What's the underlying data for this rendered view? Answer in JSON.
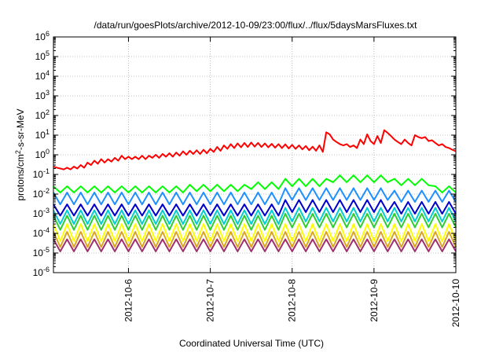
{
  "chart_data": {
    "type": "line",
    "title": "/data/run/goesPlots/archive/2012-10-09/23:00/flux/../flux/5daysMarsFluxes.txt",
    "xlabel": "Coordinated Universal Time (UTC)",
    "ylabel_prefix": "protons/cm",
    "ylabel_sup": "2",
    "ylabel_suffix": "-s-sr-MeV",
    "x_range": [
      "2012-10-05T02:00",
      "2012-10-10T00:00"
    ],
    "x_ticks": [
      "2012-10-6",
      "2012-10-7",
      "2012-10-8",
      "2012-10-9",
      "2012-10-10"
    ],
    "y_scale": "log",
    "y_range": [
      1e-06,
      1000000.0
    ],
    "y_ticks": [
      {
        "base": "10",
        "exp": "-6"
      },
      {
        "base": "10",
        "exp": "-5"
      },
      {
        "base": "10",
        "exp": "-4"
      },
      {
        "base": "10",
        "exp": "-3"
      },
      {
        "base": "10",
        "exp": "-2"
      },
      {
        "base": "10",
        "exp": "-1"
      },
      {
        "base": "10",
        "exp": "0"
      },
      {
        "base": "10",
        "exp": "1"
      },
      {
        "base": "10",
        "exp": "2"
      },
      {
        "base": "10",
        "exp": "3"
      },
      {
        "base": "10",
        "exp": "4"
      },
      {
        "base": "10",
        "exp": "5"
      },
      {
        "base": "10",
        "exp": "6"
      }
    ],
    "grid": true,
    "series": [
      {
        "color": "#ff0000",
        "points": [
          [
            "2012-10-05T02:00",
            0.25
          ],
          [
            "2012-10-05T03:00",
            0.22
          ],
          [
            "2012-10-05T04:00",
            0.2
          ],
          [
            "2012-10-05T05:00",
            0.18
          ],
          [
            "2012-10-05T06:00",
            0.22
          ],
          [
            "2012-10-05T07:00",
            0.18
          ],
          [
            "2012-10-05T08:00",
            0.25
          ],
          [
            "2012-10-05T09:00",
            0.2
          ],
          [
            "2012-10-05T10:00",
            0.3
          ],
          [
            "2012-10-05T11:00",
            0.22
          ],
          [
            "2012-10-05T12:00",
            0.4
          ],
          [
            "2012-10-05T13:00",
            0.3
          ],
          [
            "2012-10-05T14:00",
            0.5
          ],
          [
            "2012-10-05T15:00",
            0.35
          ],
          [
            "2012-10-05T16:00",
            0.6
          ],
          [
            "2012-10-05T17:00",
            0.4
          ],
          [
            "2012-10-05T18:00",
            0.6
          ],
          [
            "2012-10-05T19:00",
            0.45
          ],
          [
            "2012-10-05T20:00",
            0.7
          ],
          [
            "2012-10-05T21:00",
            0.5
          ],
          [
            "2012-10-05T22:00",
            0.9
          ],
          [
            "2012-10-05T23:00",
            0.6
          ],
          [
            "2012-10-06T00:00",
            0.8
          ],
          [
            "2012-10-06T01:00",
            0.6
          ],
          [
            "2012-10-06T02:00",
            0.8
          ],
          [
            "2012-10-06T03:00",
            0.6
          ],
          [
            "2012-10-06T04:00",
            0.9
          ],
          [
            "2012-10-06T05:00",
            0.6
          ],
          [
            "2012-10-06T06:00",
            0.9
          ],
          [
            "2012-10-06T07:00",
            0.7
          ],
          [
            "2012-10-06T08:00",
            1.0
          ],
          [
            "2012-10-06T09:00",
            0.7
          ],
          [
            "2012-10-06T10:00",
            1.1
          ],
          [
            "2012-10-06T11:00",
            0.8
          ],
          [
            "2012-10-06T12:00",
            1.2
          ],
          [
            "2012-10-06T13:00",
            0.8
          ],
          [
            "2012-10-06T14:00",
            1.3
          ],
          [
            "2012-10-06T15:00",
            0.9
          ],
          [
            "2012-10-06T16:00",
            1.5
          ],
          [
            "2012-10-06T17:00",
            1.0
          ],
          [
            "2012-10-06T18:00",
            1.6
          ],
          [
            "2012-10-06T19:00",
            1.1
          ],
          [
            "2012-10-06T20:00",
            1.7
          ],
          [
            "2012-10-06T21:00",
            1.1
          ],
          [
            "2012-10-06T22:00",
            1.8
          ],
          [
            "2012-10-06T23:00",
            1.2
          ],
          [
            "2012-10-07T00:00",
            2.0
          ],
          [
            "2012-10-07T01:00",
            1.4
          ],
          [
            "2012-10-07T02:00",
            2.5
          ],
          [
            "2012-10-07T03:00",
            1.6
          ],
          [
            "2012-10-07T04:00",
            3.0
          ],
          [
            "2012-10-07T05:00",
            2.0
          ],
          [
            "2012-10-07T06:00",
            3.5
          ],
          [
            "2012-10-07T07:00",
            2.2
          ],
          [
            "2012-10-07T08:00",
            3.8
          ],
          [
            "2012-10-07T09:00",
            2.4
          ],
          [
            "2012-10-07T10:00",
            4.0
          ],
          [
            "2012-10-07T11:00",
            2.5
          ],
          [
            "2012-10-07T12:00",
            4.2
          ],
          [
            "2012-10-07T13:00",
            2.6
          ],
          [
            "2012-10-07T14:00",
            4.0
          ],
          [
            "2012-10-07T15:00",
            2.5
          ],
          [
            "2012-10-07T16:00",
            3.8
          ],
          [
            "2012-10-07T17:00",
            2.4
          ],
          [
            "2012-10-07T18:00",
            3.6
          ],
          [
            "2012-10-07T19:00",
            2.3
          ],
          [
            "2012-10-07T20:00",
            3.5
          ],
          [
            "2012-10-07T21:00",
            2.2
          ],
          [
            "2012-10-07T22:00",
            3.4
          ],
          [
            "2012-10-07T23:00",
            2.1
          ],
          [
            "2012-10-08T00:00",
            3.2
          ],
          [
            "2012-10-08T01:00",
            2.0
          ],
          [
            "2012-10-08T02:00",
            3.0
          ],
          [
            "2012-10-08T03:00",
            1.9
          ],
          [
            "2012-10-08T04:00",
            2.8
          ],
          [
            "2012-10-08T05:00",
            1.7
          ],
          [
            "2012-10-08T06:00",
            2.6
          ],
          [
            "2012-10-08T07:00",
            1.6
          ],
          [
            "2012-10-08T08:00",
            3.0
          ],
          [
            "2012-10-08T09:00",
            1.4
          ],
          [
            "2012-10-08T10:00",
            14
          ],
          [
            "2012-10-08T11:00",
            11
          ],
          [
            "2012-10-08T12:00",
            6
          ],
          [
            "2012-10-08T13:00",
            4.5
          ],
          [
            "2012-10-08T14:00",
            3.5
          ],
          [
            "2012-10-08T15:00",
            3.0
          ],
          [
            "2012-10-08T16:00",
            3.5
          ],
          [
            "2012-10-08T17:00",
            2.5
          ],
          [
            "2012-10-08T18:00",
            3.0
          ],
          [
            "2012-10-08T19:00",
            2.2
          ],
          [
            "2012-10-08T20:00",
            6
          ],
          [
            "2012-10-08T21:00",
            3.5
          ],
          [
            "2012-10-08T22:00",
            11
          ],
          [
            "2012-10-08T23:00",
            5
          ],
          [
            "2012-10-09T00:00",
            3.5
          ],
          [
            "2012-10-09T01:00",
            9
          ],
          [
            "2012-10-09T02:00",
            4
          ],
          [
            "2012-10-09T03:00",
            18
          ],
          [
            "2012-10-09T04:00",
            13
          ],
          [
            "2012-10-09T05:00",
            9
          ],
          [
            "2012-10-09T06:00",
            6
          ],
          [
            "2012-10-09T07:00",
            4.5
          ],
          [
            "2012-10-09T08:00",
            3.5
          ],
          [
            "2012-10-09T09:00",
            6
          ],
          [
            "2012-10-09T10:00",
            4
          ],
          [
            "2012-10-09T11:00",
            3
          ],
          [
            "2012-10-09T12:00",
            10
          ],
          [
            "2012-10-09T13:00",
            8
          ],
          [
            "2012-10-09T14:00",
            7
          ],
          [
            "2012-10-09T15:00",
            8
          ],
          [
            "2012-10-09T16:00",
            5
          ],
          [
            "2012-10-09T17:00",
            5.5
          ],
          [
            "2012-10-09T18:00",
            4
          ],
          [
            "2012-10-09T19:00",
            3
          ],
          [
            "2012-10-09T20:00",
            3.5
          ],
          [
            "2012-10-09T21:00",
            2.5
          ],
          [
            "2012-10-09T22:00",
            2.2
          ],
          [
            "2012-10-09T23:00",
            1.8
          ],
          [
            "2012-10-10T00:00",
            1.5
          ]
        ]
      },
      {
        "color": "#00ff00",
        "sawtooth": {
          "start": "2012-10-05T02:00",
          "end": "2012-10-10T00:00",
          "step_hours": 2,
          "segments": [
            {
              "from": "2012-10-05T02:00",
              "high": 0.025,
              "low": 0.012
            },
            {
              "from": "2012-10-06T18:00",
              "high": 0.03,
              "low": 0.014
            },
            {
              "from": "2012-10-07T12:00",
              "high": 0.04,
              "low": 0.018
            },
            {
              "from": "2012-10-07T22:00",
              "high": 0.06,
              "low": 0.025
            },
            {
              "from": "2012-10-08T12:00",
              "high": 0.09,
              "low": 0.04
            },
            {
              "from": "2012-10-09T06:00",
              "high": 0.06,
              "low": 0.028
            },
            {
              "from": "2012-10-09T18:00",
              "high": 0.025,
              "low": 0.012
            }
          ]
        }
      },
      {
        "color": "#1e90ff",
        "sawtooth": {
          "start": "2012-10-05T02:00",
          "end": "2012-10-10T00:00",
          "step_hours": 2,
          "segments": [
            {
              "from": "2012-10-05T02:00",
              "high": 0.012,
              "low": 0.003
            },
            {
              "from": "2012-10-07T22:00",
              "high": 0.02,
              "low": 0.005
            },
            {
              "from": "2012-10-09T06:00",
              "high": 0.015,
              "low": 0.004
            }
          ]
        }
      },
      {
        "color": "#0000cd",
        "sawtooth": {
          "start": "2012-10-05T02:00",
          "end": "2012-10-10T00:00",
          "step_hours": 2,
          "segments": [
            {
              "from": "2012-10-05T02:00",
              "high": 0.003,
              "low": 0.0008
            },
            {
              "from": "2012-10-07T22:00",
              "high": 0.005,
              "low": 0.0012
            },
            {
              "from": "2012-10-09T06:00",
              "high": 0.004,
              "low": 0.001
            }
          ]
        }
      },
      {
        "color": "#00ced1",
        "sawtooth": {
          "start": "2012-10-05T02:00",
          "end": "2012-10-10T00:00",
          "step_hours": 2,
          "segments": [
            {
              "from": "2012-10-05T02:00",
              "high": 0.0015,
              "low": 0.0003
            },
            {
              "from": "2012-10-07T22:00",
              "high": 0.002,
              "low": 0.0004
            }
          ]
        }
      },
      {
        "color": "#32cd32",
        "sawtooth": {
          "start": "2012-10-05T02:00",
          "end": "2012-10-10T00:00",
          "step_hours": 2,
          "segments": [
            {
              "from": "2012-10-05T02:00",
              "high": 0.0008,
              "low": 0.00015
            },
            {
              "from": "2012-10-07T22:00",
              "high": 0.001,
              "low": 0.0002
            }
          ]
        }
      },
      {
        "color": "#ffff00",
        "sawtooth": {
          "start": "2012-10-05T02:00",
          "end": "2012-10-10T00:00",
          "step_hours": 2,
          "segments": [
            {
              "from": "2012-10-05T02:00",
              "high": 0.0003,
              "low": 4e-05
            }
          ]
        }
      },
      {
        "color": "#daa520",
        "sawtooth": {
          "start": "2012-10-05T02:00",
          "end": "2012-10-10T00:00",
          "step_hours": 2,
          "segments": [
            {
              "from": "2012-10-05T02:00",
              "high": 0.00012,
              "low": 2e-05
            }
          ]
        }
      },
      {
        "color": "#a0306e",
        "sawtooth": {
          "start": "2012-10-05T02:00",
          "end": "2012-10-10T00:00",
          "step_hours": 2,
          "segments": [
            {
              "from": "2012-10-05T02:00",
              "high": 5e-05,
              "low": 1.2e-05
            }
          ]
        }
      }
    ]
  }
}
